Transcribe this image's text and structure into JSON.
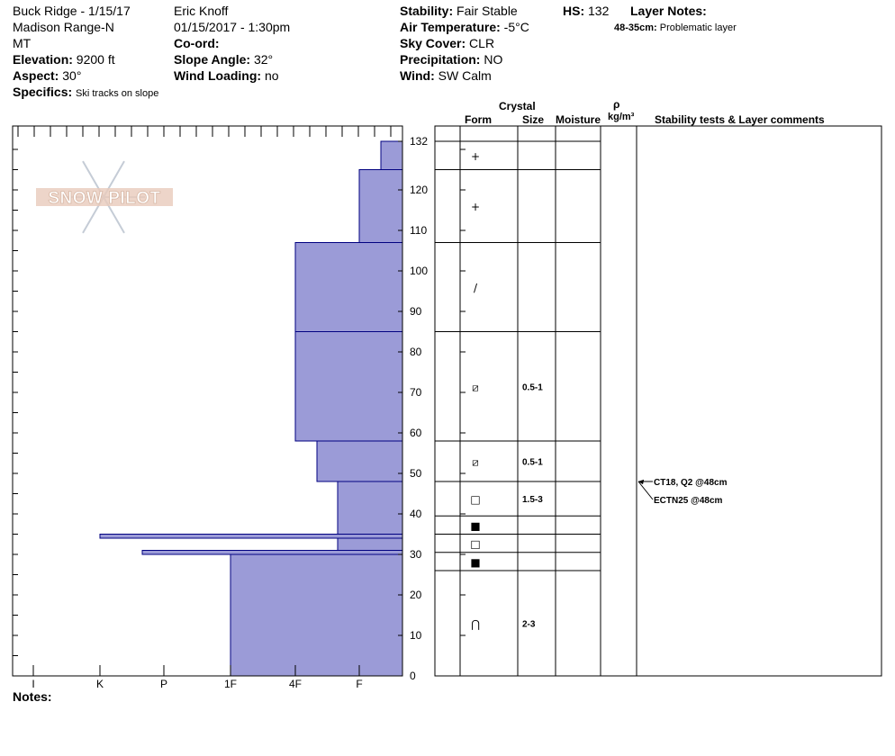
{
  "header": {
    "location": "Buck Ridge - 1/15/17",
    "range": "Madison Range-N",
    "state": "MT",
    "elevation_label": "Elevation:",
    "elevation": "9200 ft",
    "aspect_label": "Aspect:",
    "aspect": "30°",
    "specifics_label": "Specifics:",
    "specifics": "Ski tracks on slope",
    "observer": "Eric Knoff",
    "datetime": "01/15/2017 - 1:30pm",
    "coord_label": "Co-ord:",
    "slope_label": "Slope Angle:",
    "slope": "32°",
    "wind_loading_label": "Wind Loading:",
    "wind_loading": "no",
    "stability_label": "Stability:",
    "stability": "Fair Stable",
    "air_temp_label": "Air Temperature:",
    "air_temp": "-5°C",
    "sky_label": "Sky Cover:",
    "sky": "CLR",
    "precip_label": "Precipitation:",
    "precip": "NO",
    "wind_label": "Wind:",
    "wind": "SW Calm",
    "hs_label": "HS:",
    "hs": "132",
    "layer_notes_label": "Layer Notes:",
    "layer_note_range": "48-35cm:",
    "layer_note_text": "Problematic layer"
  },
  "logo_text": "SNOW PILOT",
  "columns": {
    "crystal": "Crystal",
    "form": "Form",
    "size": "Size",
    "moisture": "Moisture",
    "rho": "ρ",
    "density_unit": "kg/m³",
    "comments": "Stability tests & Layer comments"
  },
  "notes_label": "Notes:",
  "colors": {
    "fill": "#9b9bd7",
    "line": "#000080"
  },
  "chart_data": {
    "type": "bar",
    "orientation": "horizontal",
    "y_axis": {
      "min": 0,
      "max": 132,
      "ticks": [
        0,
        10,
        20,
        30,
        40,
        50,
        60,
        70,
        80,
        90,
        100,
        110,
        120,
        132
      ]
    },
    "x_axis": {
      "categories": [
        "I",
        "K",
        "P",
        "1F",
        "4F",
        "F"
      ]
    },
    "hardness_layers": [
      {
        "top": 132,
        "bottom": 125,
        "hardness": "F-"
      },
      {
        "top": 125,
        "bottom": 107,
        "hardness": "F"
      },
      {
        "top": 107,
        "bottom": 85,
        "hardness": "4F"
      },
      {
        "top": 85,
        "bottom": 58,
        "hardness": "4F"
      },
      {
        "top": 58,
        "bottom": 48,
        "hardness": "4F-"
      },
      {
        "top": 48,
        "bottom": 35,
        "hardness": "F+"
      },
      {
        "top": 35,
        "bottom": 34,
        "hardness": "K"
      },
      {
        "top": 34,
        "bottom": 31,
        "hardness": "F+"
      },
      {
        "top": 31,
        "bottom": 30,
        "hardness": "P+"
      },
      {
        "top": 30,
        "bottom": 0,
        "hardness": "1F"
      }
    ],
    "layer_boundaries": [
      132,
      125,
      107,
      85,
      58,
      48,
      39.5,
      35,
      30.5,
      26,
      0
    ],
    "layers": [
      {
        "top": 132,
        "bottom": 125,
        "form": "+",
        "size": ""
      },
      {
        "top": 125,
        "bottom": 107,
        "form": "+",
        "size": ""
      },
      {
        "top": 107,
        "bottom": 85,
        "form": "/",
        "size": ""
      },
      {
        "top": 85,
        "bottom": 58,
        "form": "⧄",
        "size": "0.5-1"
      },
      {
        "top": 58,
        "bottom": 48,
        "form": "⧄",
        "size": "0.5-1"
      },
      {
        "top": 48,
        "bottom": 39.5,
        "form": "□",
        "size": "1.5-3"
      },
      {
        "top": 39.5,
        "bottom": 35,
        "form": "■",
        "size": ""
      },
      {
        "top": 35,
        "bottom": 30.5,
        "form": "□",
        "size": ""
      },
      {
        "top": 30.5,
        "bottom": 26,
        "form": "■",
        "size": ""
      },
      {
        "top": 26,
        "bottom": 0,
        "form": "⋂",
        "size": "2-3"
      }
    ],
    "tests": [
      {
        "depth": 48,
        "text": "CT18, Q2 @48cm"
      },
      {
        "depth": 48,
        "text": "ECTN25 @48cm"
      }
    ]
  }
}
